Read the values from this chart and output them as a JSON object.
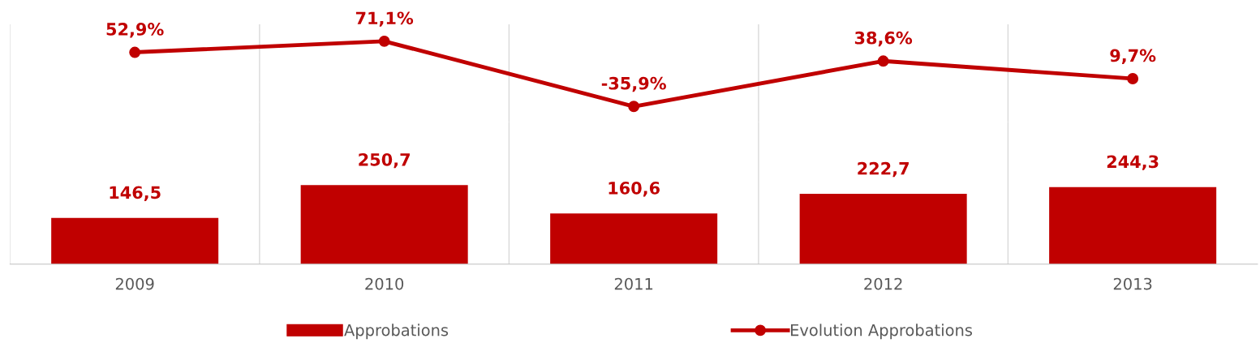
{
  "chart_data": [
    {
      "type": "line",
      "categories": [
        "2009",
        "2010",
        "2011",
        "2012",
        "2013"
      ],
      "series": [
        {
          "name": "Evolution Approbations",
          "color": "#c00000",
          "values": [
            52.9,
            71.1,
            -35.9,
            38.6,
            9.7
          ],
          "value_labels": [
            "52,9%",
            "71,1%",
            "-35,9%",
            "38,6%",
            "9,7%"
          ]
        }
      ],
      "marker": "circle",
      "line_style": "solid",
      "grid": "x",
      "tick_labels": false,
      "legend": "bottom"
    },
    {
      "type": "bar",
      "categories": [
        "2009",
        "2010",
        "2011",
        "2012",
        "2013"
      ],
      "series": [
        {
          "name": "Approbations",
          "color": "#c00000",
          "values": [
            146.5,
            250.7,
            160.6,
            222.7,
            244.3
          ],
          "value_labels": [
            "146,5",
            "250,7",
            "160,6",
            "222,7",
            "244,3"
          ]
        }
      ],
      "grid": "x",
      "legend": "bottom"
    }
  ]
}
